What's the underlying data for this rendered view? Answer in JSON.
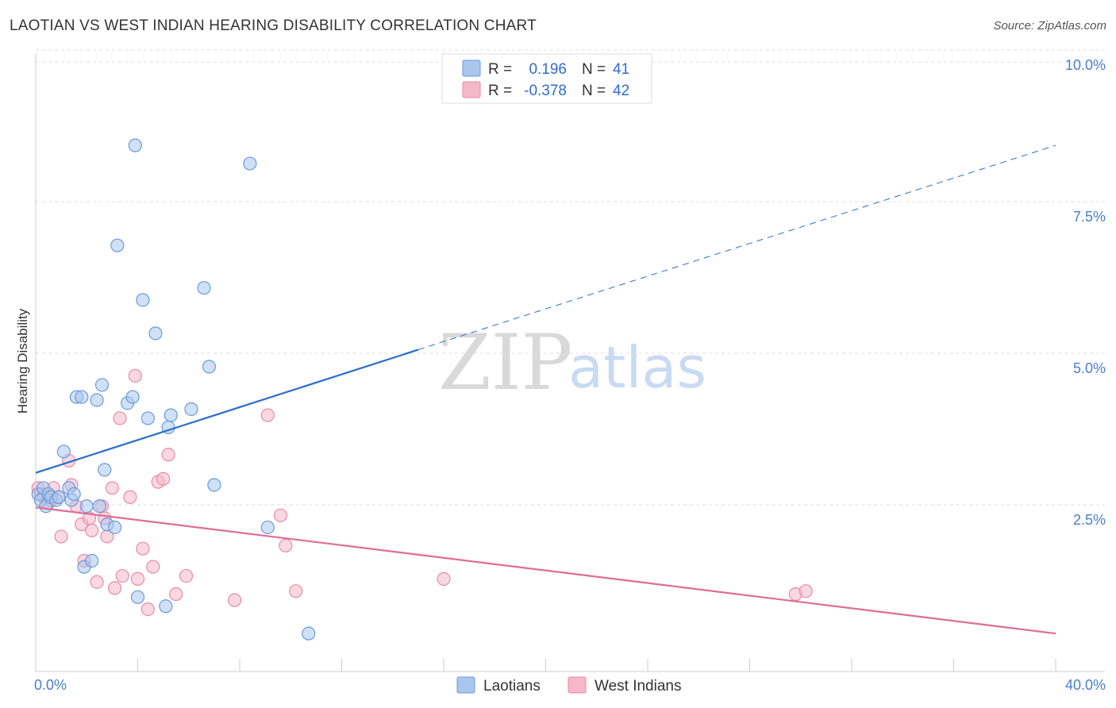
{
  "title": "LAOTIAN VS WEST INDIAN HEARING DISABILITY CORRELATION CHART",
  "source": "Source: ZipAtlas.com",
  "watermark": {
    "zip": "ZIP",
    "atlas": "atlas"
  },
  "legend": {
    "rows": [
      {
        "r_label": "R =",
        "r_value": "0.196",
        "n_label": "N =",
        "n_value": "41"
      },
      {
        "r_label": "R =",
        "r_value": "-0.378",
        "n_label": "N =",
        "n_value": "42"
      }
    ]
  },
  "colors": {
    "blue_fill": "#a9c6ee",
    "blue_stroke": "#6a9ad8",
    "blue_line": "#2a6ccf",
    "pink_fill": "#f5b8cb",
    "pink_stroke": "#e88aa6",
    "pink_line": "#e06c96"
  },
  "chart_data": {
    "type": "scatter",
    "title": "LAOTIAN VS WEST INDIAN HEARING DISABILITY CORRELATION CHART",
    "xlabel": "",
    "ylabel": "Hearing Disability",
    "xlim": [
      0,
      40
    ],
    "ylim": [
      0,
      10.5
    ],
    "x_tick_labels": [
      "0.0%",
      "40.0%"
    ],
    "y_ticks": [
      {
        "value": 2.5,
        "label": "2.5%"
      },
      {
        "value": 5.0,
        "label": "5.0%"
      },
      {
        "value": 7.5,
        "label": "7.5%"
      },
      {
        "value": 10.0,
        "label": "10.0%"
      }
    ],
    "series": [
      {
        "name": "Laotians",
        "color": "blue",
        "points": [
          [
            0.1,
            2.9
          ],
          [
            0.2,
            2.8
          ],
          [
            0.3,
            3.0
          ],
          [
            0.4,
            2.7
          ],
          [
            0.5,
            2.9
          ],
          [
            0.6,
            2.85
          ],
          [
            0.8,
            2.8
          ],
          [
            0.9,
            2.85
          ],
          [
            1.1,
            3.6
          ],
          [
            1.3,
            3.0
          ],
          [
            1.4,
            2.8
          ],
          [
            1.5,
            2.9
          ],
          [
            1.6,
            4.5
          ],
          [
            1.8,
            4.5
          ],
          [
            1.9,
            1.7
          ],
          [
            2.0,
            2.7
          ],
          [
            2.2,
            1.8
          ],
          [
            2.4,
            4.45
          ],
          [
            2.6,
            4.7
          ],
          [
            2.7,
            3.3
          ],
          [
            2.8,
            2.4
          ],
          [
            3.1,
            2.35
          ],
          [
            3.2,
            7.0
          ],
          [
            3.6,
            4.4
          ],
          [
            3.8,
            4.5
          ],
          [
            3.9,
            8.65
          ],
          [
            4.0,
            1.2
          ],
          [
            4.2,
            6.1
          ],
          [
            4.4,
            4.15
          ],
          [
            4.7,
            5.55
          ],
          [
            5.1,
            1.05
          ],
          [
            5.2,
            4.0
          ],
          [
            5.3,
            4.2
          ],
          [
            6.1,
            4.3
          ],
          [
            6.6,
            6.3
          ],
          [
            6.8,
            5.0
          ],
          [
            7.0,
            3.05
          ],
          [
            8.4,
            8.35
          ],
          [
            9.1,
            2.35
          ],
          [
            10.7,
            0.6
          ],
          [
            2.5,
            2.7
          ]
        ]
      },
      {
        "name": "West Indians",
        "color": "pink",
        "points": [
          [
            0.1,
            3.0
          ],
          [
            0.2,
            2.9
          ],
          [
            0.3,
            2.85
          ],
          [
            0.5,
            2.75
          ],
          [
            0.6,
            2.8
          ],
          [
            0.7,
            3.0
          ],
          [
            0.9,
            2.85
          ],
          [
            1.0,
            2.2
          ],
          [
            1.3,
            3.45
          ],
          [
            1.4,
            3.05
          ],
          [
            1.6,
            2.7
          ],
          [
            1.8,
            2.4
          ],
          [
            1.9,
            1.8
          ],
          [
            2.1,
            2.5
          ],
          [
            2.2,
            2.3
          ],
          [
            2.4,
            1.45
          ],
          [
            2.6,
            2.7
          ],
          [
            2.7,
            2.5
          ],
          [
            2.8,
            2.2
          ],
          [
            3.0,
            3.0
          ],
          [
            3.1,
            1.35
          ],
          [
            3.3,
            4.15
          ],
          [
            3.4,
            1.55
          ],
          [
            3.7,
            2.85
          ],
          [
            3.9,
            4.85
          ],
          [
            4.0,
            1.5
          ],
          [
            4.2,
            2.0
          ],
          [
            4.4,
            1.0
          ],
          [
            4.6,
            1.7
          ],
          [
            4.8,
            3.1
          ],
          [
            5.0,
            3.15
          ],
          [
            5.2,
            3.55
          ],
          [
            5.5,
            1.25
          ],
          [
            5.9,
            1.55
          ],
          [
            7.8,
            1.15
          ],
          [
            9.1,
            4.2
          ],
          [
            9.6,
            2.55
          ],
          [
            9.8,
            2.05
          ],
          [
            10.2,
            1.3
          ],
          [
            16.0,
            1.5
          ],
          [
            29.8,
            1.25
          ],
          [
            30.2,
            1.3
          ]
        ]
      }
    ],
    "trend_lines": [
      {
        "series": "Laotians",
        "x_start": 0,
        "y_start": 3.25,
        "x_solid_end": 15.0,
        "y_solid_end": 5.28,
        "x_dashed_end": 40,
        "y_dashed_end": 8.65
      },
      {
        "series": "West Indians",
        "x_start": 0,
        "y_start": 2.68,
        "x_end": 40,
        "y_end": 0.6
      }
    ]
  },
  "bottom_legend": [
    "Laotians",
    "West Indians"
  ]
}
